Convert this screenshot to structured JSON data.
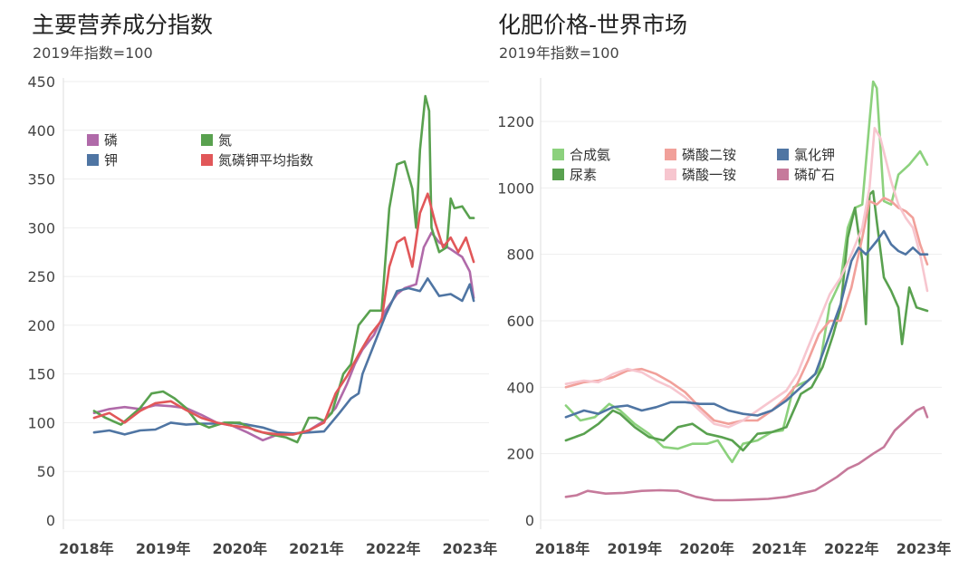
{
  "chart_data": [
    {
      "type": "line",
      "title": "主要营养成分指数",
      "subtitle": "2019年指数=100",
      "xlabel": "",
      "ylabel": "",
      "x_ticks": [
        "2018年",
        "2019年",
        "2020年",
        "2021年",
        "2022年",
        "2023年"
      ],
      "x_tick_values": [
        2018,
        2019,
        2020,
        2021,
        2022,
        2023
      ],
      "xlim": [
        2017.7,
        2023.25
      ],
      "y_ticks": [
        "0",
        "50",
        "100",
        "150",
        "200",
        "250",
        "300",
        "350",
        "400",
        "450"
      ],
      "ylim": [
        0,
        450
      ],
      "grid": true,
      "legend": "top-left",
      "series": [
        {
          "name": "磷",
          "color": "#b06aa9",
          "x": [
            2018.1,
            2018.3,
            2018.5,
            2018.7,
            2018.9,
            2019.1,
            2019.3,
            2019.5,
            2019.7,
            2019.9,
            2020.1,
            2020.3,
            2020.5,
            2020.7,
            2020.9,
            2021.1,
            2021.25,
            2021.4,
            2021.5,
            2021.6,
            2021.75,
            2021.9,
            2022.05,
            2022.15,
            2022.3,
            2022.4,
            2022.5,
            2022.6,
            2022.75,
            2022.9,
            2023.0,
            2023.05
          ],
          "y": [
            110,
            114,
            116,
            114,
            118,
            117,
            115,
            108,
            100,
            97,
            90,
            82,
            88,
            88,
            92,
            102,
            115,
            140,
            160,
            175,
            190,
            215,
            232,
            238,
            242,
            280,
            295,
            285,
            278,
            270,
            255,
            228
          ]
        },
        {
          "name": "钾",
          "color": "#4f75a3",
          "x": [
            2018.1,
            2018.3,
            2018.5,
            2018.7,
            2018.9,
            2019.1,
            2019.3,
            2019.5,
            2019.7,
            2019.9,
            2020.1,
            2020.3,
            2020.5,
            2020.7,
            2020.9,
            2021.1,
            2021.3,
            2021.45,
            2021.55,
            2021.6,
            2021.75,
            2021.9,
            2022.05,
            2022.2,
            2022.35,
            2022.45,
            2022.6,
            2022.75,
            2022.9,
            2023.0,
            2023.05
          ],
          "y": [
            90,
            92,
            88,
            92,
            93,
            100,
            98,
            99,
            99,
            100,
            98,
            95,
            90,
            89,
            90,
            91,
            110,
            125,
            130,
            150,
            180,
            210,
            235,
            238,
            235,
            248,
            230,
            232,
            225,
            242,
            225
          ]
        },
        {
          "name": "氮",
          "color": "#59a14f",
          "x": [
            2018.1,
            2018.25,
            2018.45,
            2018.7,
            2018.85,
            2019.0,
            2019.15,
            2019.3,
            2019.45,
            2019.6,
            2019.8,
            2020.0,
            2020.2,
            2020.4,
            2020.6,
            2020.75,
            2020.9,
            2021.0,
            2021.1,
            2021.2,
            2021.35,
            2021.45,
            2021.55,
            2021.7,
            2021.85,
            2021.95,
            2022.05,
            2022.15,
            2022.25,
            2022.3,
            2022.35,
            2022.42,
            2022.47,
            2022.5,
            2022.6,
            2022.7,
            2022.75,
            2022.8,
            2022.9,
            2023.0,
            2023.05
          ],
          "y": [
            112,
            105,
            98,
            115,
            130,
            132,
            125,
            115,
            100,
            95,
            100,
            100,
            92,
            88,
            85,
            80,
            105,
            105,
            102,
            110,
            150,
            160,
            200,
            215,
            215,
            320,
            365,
            368,
            340,
            300,
            380,
            435,
            420,
            300,
            275,
            280,
            330,
            320,
            322,
            310,
            310
          ]
        },
        {
          "name": "氮磷钾平均指数",
          "color": "#e15759",
          "x": [
            2018.1,
            2018.3,
            2018.5,
            2018.7,
            2018.9,
            2019.1,
            2019.3,
            2019.5,
            2019.7,
            2019.9,
            2020.1,
            2020.3,
            2020.5,
            2020.7,
            2020.9,
            2021.1,
            2021.25,
            2021.4,
            2021.55,
            2021.7,
            2021.85,
            2021.95,
            2022.05,
            2022.15,
            2022.25,
            2022.35,
            2022.45,
            2022.55,
            2022.65,
            2022.75,
            2022.85,
            2022.95,
            2023.05
          ],
          "y": [
            105,
            110,
            100,
            112,
            120,
            122,
            113,
            105,
            100,
            97,
            95,
            90,
            88,
            88,
            92,
            100,
            130,
            148,
            170,
            190,
            205,
            260,
            285,
            290,
            260,
            315,
            335,
            305,
            280,
            290,
            275,
            290,
            265
          ]
        }
      ]
    },
    {
      "type": "line",
      "title": "化肥价格-世界市场",
      "subtitle": "2019年指数=100",
      "xlabel": "",
      "ylabel": "",
      "x_ticks": [
        "2018年",
        "2019年",
        "2020年",
        "2021年",
        "2022年",
        "2023年"
      ],
      "x_tick_values": [
        2018,
        2019,
        2020,
        2021,
        2022,
        2023
      ],
      "xlim": [
        2017.7,
        2023.25
      ],
      "y_ticks": [
        "0",
        "200",
        "400",
        "600",
        "800",
        "1000",
        "1200"
      ],
      "ylim": [
        0,
        1320
      ],
      "grid": true,
      "legend": "top-left",
      "series": [
        {
          "name": "合成氨",
          "color": "#8cd17d",
          "x": [
            2018.05,
            2018.25,
            2018.45,
            2018.65,
            2018.8,
            2019.0,
            2019.2,
            2019.4,
            2019.6,
            2019.8,
            2020.0,
            2020.15,
            2020.3,
            2020.35,
            2020.5,
            2020.7,
            2020.9,
            2021.05,
            2021.2,
            2021.4,
            2021.55,
            2021.7,
            2021.85,
            2021.95,
            2022.05,
            2022.15,
            2022.25,
            2022.3,
            2022.35,
            2022.45,
            2022.55,
            2022.65,
            2022.8,
            2022.95,
            2023.05
          ],
          "y": [
            345,
            300,
            310,
            350,
            330,
            290,
            260,
            220,
            215,
            230,
            230,
            240,
            190,
            175,
            230,
            240,
            265,
            270,
            400,
            420,
            450,
            650,
            720,
            880,
            940,
            950,
            1200,
            1320,
            1300,
            960,
            950,
            1040,
            1070,
            1110,
            1070
          ]
        },
        {
          "name": "尿素",
          "color": "#59a14f",
          "x": [
            2018.05,
            2018.3,
            2018.5,
            2018.7,
            2018.8,
            2019.0,
            2019.2,
            2019.4,
            2019.6,
            2019.8,
            2020.0,
            2020.2,
            2020.35,
            2020.5,
            2020.7,
            2020.9,
            2021.1,
            2021.3,
            2021.45,
            2021.6,
            2021.75,
            2021.85,
            2021.95,
            2022.05,
            2022.15,
            2022.2,
            2022.25,
            2022.3,
            2022.35,
            2022.45,
            2022.55,
            2022.65,
            2022.7,
            2022.8,
            2022.9,
            2023.05
          ],
          "y": [
            240,
            260,
            290,
            330,
            320,
            280,
            250,
            240,
            280,
            290,
            260,
            250,
            240,
            210,
            260,
            265,
            280,
            380,
            400,
            460,
            560,
            640,
            850,
            940,
            780,
            590,
            980,
            990,
            900,
            730,
            690,
            640,
            530,
            700,
            640,
            630
          ]
        },
        {
          "name": "磷酸二铵",
          "color": "#f1a09a",
          "x": [
            2018.05,
            2018.3,
            2018.5,
            2018.7,
            2018.9,
            2019.1,
            2019.3,
            2019.5,
            2019.7,
            2019.9,
            2020.1,
            2020.3,
            2020.5,
            2020.7,
            2020.9,
            2021.1,
            2021.25,
            2021.4,
            2021.55,
            2021.7,
            2021.85,
            2022.0,
            2022.15,
            2022.25,
            2022.35,
            2022.45,
            2022.55,
            2022.65,
            2022.75,
            2022.85,
            2022.95,
            2023.05
          ],
          "y": [
            400,
            415,
            420,
            430,
            450,
            455,
            440,
            415,
            385,
            340,
            300,
            290,
            300,
            300,
            330,
            370,
            410,
            480,
            560,
            600,
            600,
            700,
            850,
            960,
            950,
            970,
            960,
            940,
            930,
            910,
            830,
            770
          ]
        },
        {
          "name": "磷酸一铵",
          "color": "#f7c6cf",
          "x": [
            2018.05,
            2018.3,
            2018.5,
            2018.7,
            2018.9,
            2019.1,
            2019.3,
            2019.5,
            2019.7,
            2019.9,
            2020.1,
            2020.3,
            2020.5,
            2020.7,
            2020.9,
            2021.1,
            2021.25,
            2021.4,
            2021.55,
            2021.7,
            2021.85,
            2022.0,
            2022.15,
            2022.25,
            2022.32,
            2022.4,
            2022.55,
            2022.65,
            2022.75,
            2022.85,
            2022.95,
            2023.05
          ],
          "y": [
            410,
            420,
            415,
            440,
            455,
            445,
            420,
            400,
            370,
            330,
            290,
            280,
            300,
            330,
            360,
            390,
            440,
            520,
            600,
            680,
            730,
            800,
            880,
            1000,
            1180,
            1150,
            1020,
            950,
            910,
            880,
            800,
            690
          ]
        },
        {
          "name": "氯化钾",
          "color": "#4f75a3",
          "x": [
            2018.05,
            2018.3,
            2018.5,
            2018.7,
            2018.9,
            2019.1,
            2019.3,
            2019.5,
            2019.7,
            2019.9,
            2020.1,
            2020.3,
            2020.5,
            2020.7,
            2020.9,
            2021.1,
            2021.3,
            2021.5,
            2021.7,
            2021.85,
            2022.0,
            2022.1,
            2022.2,
            2022.35,
            2022.45,
            2022.55,
            2022.65,
            2022.75,
            2022.85,
            2022.95,
            2023.05
          ],
          "y": [
            310,
            330,
            320,
            340,
            345,
            330,
            340,
            355,
            355,
            350,
            350,
            330,
            320,
            315,
            330,
            360,
            400,
            440,
            560,
            650,
            780,
            820,
            800,
            840,
            870,
            830,
            810,
            800,
            820,
            800,
            800
          ]
        },
        {
          "name": "磷矿石",
          "color": "#c67a9b",
          "x": [
            2018.05,
            2018.2,
            2018.35,
            2018.6,
            2018.85,
            2019.1,
            2019.35,
            2019.6,
            2019.85,
            2020.1,
            2020.35,
            2020.6,
            2020.85,
            2021.1,
            2021.3,
            2021.5,
            2021.65,
            2021.8,
            2021.95,
            2022.1,
            2022.3,
            2022.45,
            2022.6,
            2022.75,
            2022.9,
            2023.0,
            2023.05
          ],
          "y": [
            70,
            75,
            88,
            80,
            82,
            88,
            90,
            88,
            70,
            60,
            60,
            62,
            64,
            70,
            80,
            90,
            110,
            130,
            155,
            170,
            200,
            220,
            270,
            300,
            330,
            340,
            310
          ]
        }
      ]
    }
  ]
}
